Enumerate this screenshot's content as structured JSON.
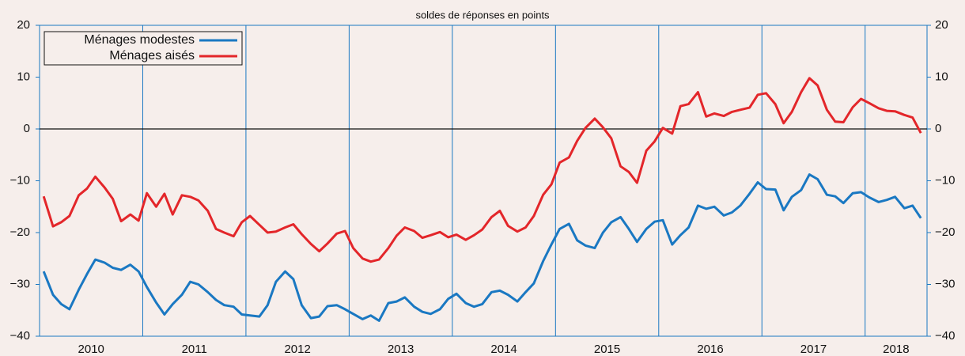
{
  "chart_data": {
    "type": "line",
    "title": "soldes de réponses en points",
    "x": [
      2010.04,
      2010.13,
      2010.21,
      2010.29,
      2010.38,
      2010.46,
      2010.54,
      2010.63,
      2010.71,
      2010.79,
      2010.88,
      2010.96,
      2011.04,
      2011.13,
      2011.21,
      2011.29,
      2011.38,
      2011.46,
      2011.54,
      2011.63,
      2011.71,
      2011.79,
      2011.88,
      2011.96,
      2012.04,
      2012.13,
      2012.21,
      2012.29,
      2012.38,
      2012.46,
      2012.54,
      2012.63,
      2012.71,
      2012.79,
      2012.88,
      2012.96,
      2013.04,
      2013.13,
      2013.21,
      2013.29,
      2013.38,
      2013.46,
      2013.54,
      2013.63,
      2013.71,
      2013.79,
      2013.88,
      2013.96,
      2014.04,
      2014.13,
      2014.21,
      2014.29,
      2014.38,
      2014.46,
      2014.54,
      2014.63,
      2014.71,
      2014.79,
      2014.88,
      2014.96,
      2015.04,
      2015.13,
      2015.21,
      2015.29,
      2015.38,
      2015.46,
      2015.54,
      2015.63,
      2015.71,
      2015.79,
      2015.88,
      2015.96,
      2016.04,
      2016.13,
      2016.21,
      2016.29,
      2016.38,
      2016.46,
      2016.54,
      2016.63,
      2016.71,
      2016.79,
      2016.88,
      2016.96,
      2017.04,
      2017.13,
      2017.21,
      2017.29,
      2017.38,
      2017.46,
      2017.54,
      2017.63,
      2017.71,
      2017.79,
      2017.88,
      2017.96,
      2018.04,
      2018.13,
      2018.21,
      2018.29,
      2018.38,
      2018.46,
      2018.54
    ],
    "series": [
      {
        "name": "Ménages modestes",
        "color": "#1a78c2",
        "values": [
          -27.5,
          -32,
          -33.8,
          -34.8,
          -31,
          -28,
          -25.2,
          -25.8,
          -26.8,
          -27.2,
          -26.2,
          -27.5,
          -30.5,
          -33.5,
          -35.8,
          -33.8,
          -32,
          -29.5,
          -30,
          -31.5,
          -33,
          -34,
          -34.3,
          -35.8,
          -36,
          -36.2,
          -34,
          -29.5,
          -27.5,
          -29,
          -34,
          -36.5,
          -36.2,
          -34.2,
          -34,
          -34.8,
          -35.7,
          -36.7,
          -36,
          -37,
          -33.6,
          -33.3,
          -32.5,
          -34.3,
          -35.3,
          -35.7,
          -34.8,
          -32.8,
          -31.8,
          -33.6,
          -34.3,
          -33.8,
          -31.5,
          -31.2,
          -32,
          -33.3,
          -31.5,
          -29.8,
          -25.5,
          -22.3,
          -19.3,
          -18.3,
          -21.5,
          -22.5,
          -23,
          -20,
          -18,
          -17,
          -19.3,
          -21.8,
          -19.3,
          -17.9,
          -17.6,
          -22.3,
          -20.5,
          -19,
          -14.8,
          -15.4,
          -15,
          -16.7,
          -16.1,
          -14.8,
          -12.5,
          -10.3,
          -11.6,
          -11.7,
          -15.7,
          -13.1,
          -11.8,
          -8.8,
          -9.7,
          -12.7,
          -13,
          -14.3,
          -12.4,
          -12.2,
          -13.2,
          -14.1,
          -13.7,
          -13.1,
          -15.3,
          -14.8,
          -17.2
        ]
      },
      {
        "name": "Ménages aisés",
        "color": "#e3262a",
        "values": [
          -13,
          -18.8,
          -18,
          -16.8,
          -12.8,
          -11.5,
          -9.2,
          -11.3,
          -13.5,
          -17.8,
          -16.5,
          -17.7,
          -12.4,
          -15,
          -12.5,
          -16.5,
          -12.8,
          -13.1,
          -13.8,
          -15.8,
          -19.3,
          -20,
          -20.7,
          -18,
          -16.8,
          -18.5,
          -20,
          -19.8,
          -19,
          -18.4,
          -20.3,
          -22.2,
          -23.6,
          -22.1,
          -20.2,
          -19.7,
          -23,
          -25,
          -25.6,
          -25.2,
          -23,
          -20.6,
          -19,
          -19.7,
          -21,
          -20.5,
          -19.9,
          -20.9,
          -20.4,
          -21.4,
          -20.5,
          -19.4,
          -17,
          -15.8,
          -18.7,
          -19.8,
          -19,
          -16.8,
          -12.7,
          -10.7,
          -6.5,
          -5.5,
          -2.3,
          0.2,
          2,
          0.3,
          -1.8,
          -7.2,
          -8.3,
          -10.4,
          -4.2,
          -2.4,
          0.2,
          -0.9,
          4.4,
          4.8,
          7.1,
          2.4,
          3,
          2.5,
          3.3,
          3.7,
          4.1,
          6.6,
          6.9,
          4.8,
          1.1,
          3.3,
          7.1,
          9.8,
          8.4,
          3.7,
          1.4,
          1.3,
          4.2,
          5.8,
          5,
          4,
          3.5,
          3.4,
          2.7,
          2.2,
          -0.8
        ]
      }
    ],
    "xlim": [
      2010,
      2018.6
    ],
    "xticks": [
      {
        "value": 2010,
        "label": "2010"
      },
      {
        "value": 2011,
        "label": "2011"
      },
      {
        "value": 2012,
        "label": "2012"
      },
      {
        "value": 2013,
        "label": "2013"
      },
      {
        "value": 2014,
        "label": "2014"
      },
      {
        "value": 2015,
        "label": "2015"
      },
      {
        "value": 2016,
        "label": "2016"
      },
      {
        "value": 2017,
        "label": "2017"
      },
      {
        "value": 2018,
        "label": "2018"
      }
    ],
    "ylim": [
      -40,
      20
    ],
    "yticks": [
      {
        "value": -40,
        "label": "−40"
      },
      {
        "value": -30,
        "label": "−30"
      },
      {
        "value": -20,
        "label": "−20"
      },
      {
        "value": -10,
        "label": "−10"
      },
      0,
      10,
      20
    ],
    "legend": "upper left"
  }
}
